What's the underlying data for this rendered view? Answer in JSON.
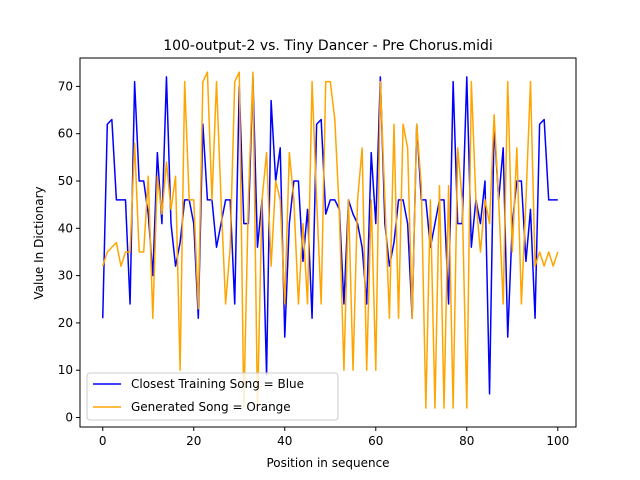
{
  "chart_data": {
    "type": "line",
    "title": "100-output-2 vs. Tiny Dancer - Pre Chorus.midi",
    "xlabel": "Position in sequence",
    "ylabel": "Value In Dictionary",
    "xlim": [
      -5,
      104
    ],
    "ylim": [
      -2,
      76
    ],
    "xticks": [
      0,
      20,
      40,
      60,
      80,
      100
    ],
    "yticks": [
      0,
      10,
      20,
      30,
      40,
      50,
      60,
      70
    ],
    "legend_position": "lower-left",
    "series": [
      {
        "name": "Closest Training Song = Blue",
        "color": "#0000ff",
        "values": [
          21,
          62,
          63,
          46,
          46,
          46,
          24,
          71,
          50,
          50,
          43,
          30,
          56,
          41,
          72,
          41,
          32,
          37,
          46,
          46,
          41,
          21,
          62,
          46,
          46,
          36,
          41,
          46,
          46,
          24,
          70,
          41,
          41,
          72,
          36,
          46,
          9,
          67,
          50,
          57,
          17,
          41,
          50,
          50,
          33,
          44,
          21,
          62,
          63,
          43,
          46,
          46,
          44,
          24,
          46,
          43,
          41,
          36,
          24,
          56,
          41,
          72,
          41,
          32,
          37,
          46,
          46,
          41,
          21,
          62,
          46,
          46,
          36,
          41,
          46,
          46,
          24,
          71,
          41,
          41,
          72,
          36,
          46,
          41,
          50,
          5,
          62,
          46,
          57,
          17,
          41,
          50,
          50,
          33,
          44,
          21,
          62,
          63,
          46,
          46,
          46
        ]
      },
      {
        "name": "Generated Song = Orange",
        "color": "#ffa500",
        "values": [
          32,
          35,
          36,
          37,
          32,
          35,
          35,
          58,
          35,
          35,
          51,
          21,
          51,
          43,
          54,
          44,
          51,
          10,
          71,
          46,
          46,
          23,
          71,
          73,
          46,
          71,
          46,
          24,
          36,
          71,
          73,
          2,
          46,
          73,
          2,
          46,
          56,
          32,
          50,
          46,
          24,
          56,
          46,
          24,
          41,
          24,
          71,
          46,
          24,
          71,
          71,
          63,
          43,
          10,
          46,
          10,
          46,
          57,
          10,
          46,
          10,
          71,
          46,
          21,
          62,
          21,
          62,
          57,
          21,
          62,
          49,
          2,
          46,
          2,
          49,
          2,
          49,
          2,
          57,
          46,
          2,
          71,
          46,
          35,
          46,
          41,
          64,
          46,
          24,
          71,
          35,
          57,
          24,
          46,
          71,
          32,
          35,
          32,
          35,
          32,
          35
        ]
      }
    ]
  }
}
